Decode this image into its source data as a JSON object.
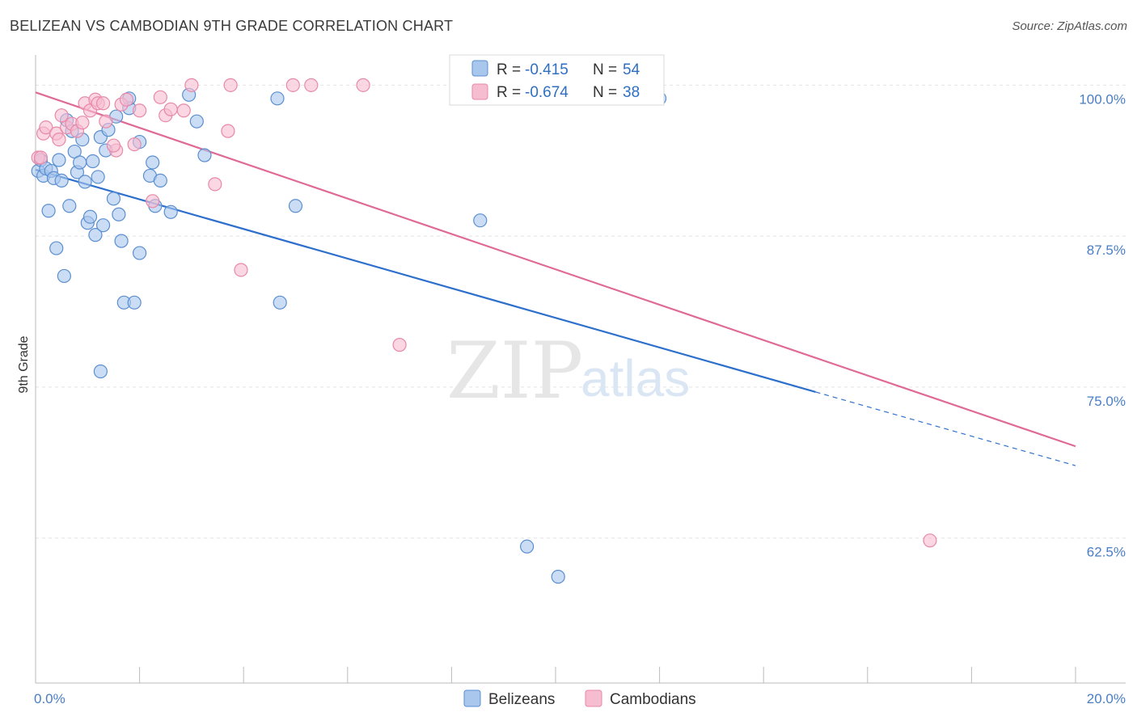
{
  "title": "BELIZEAN VS CAMBODIAN 9TH GRADE CORRELATION CHART",
  "source": "Source: ZipAtlas.com",
  "watermark": {
    "zip": "ZIP",
    "atlas": "atlas"
  },
  "colors": {
    "blue_fill": "#a9c6ec",
    "blue_stroke": "#5b8fd0",
    "blue_line": "#2d6fcc",
    "pink_fill": "#f6bcd0",
    "pink_stroke": "#e889a9",
    "pink_line": "#e06a96",
    "axis_text": "#4a7ec4"
  },
  "legend": {
    "r_label": "R =",
    "n_label": "N =",
    "rows": [
      {
        "r": "-0.415",
        "n": "54"
      },
      {
        "r": "-0.674",
        "n": "38"
      }
    ]
  },
  "bottom_legend": [
    "Belizeans",
    "Cambodians"
  ],
  "chart_data": {
    "type": "scatter",
    "title": "BELIZEAN VS CAMBODIAN 9TH GRADE CORRELATION CHART",
    "xlabel": "",
    "ylabel": "9th Grade",
    "xlim": [
      0,
      20
    ],
    "ylim": [
      50.5,
      102.5
    ],
    "x_tick_labels": [
      "0.0%",
      "20.0%"
    ],
    "y_ticks": [
      100,
      87.5,
      75,
      62.5
    ],
    "y_tick_labels": [
      "100.0%",
      "87.5%",
      "75.0%",
      "62.5%"
    ],
    "grid": true,
    "series": [
      {
        "name": "Belizeans",
        "points": [
          [
            0.05,
            92.9
          ],
          [
            0.1,
            93.8
          ],
          [
            0.15,
            92.5
          ],
          [
            0.2,
            93.1
          ],
          [
            0.3,
            92.9
          ],
          [
            0.25,
            89.6
          ],
          [
            0.35,
            92.3
          ],
          [
            0.45,
            93.8
          ],
          [
            0.4,
            86.5
          ],
          [
            0.5,
            92.1
          ],
          [
            0.55,
            84.2
          ],
          [
            0.6,
            97.1
          ],
          [
            0.65,
            90.0
          ],
          [
            0.7,
            96.2
          ],
          [
            0.75,
            94.5
          ],
          [
            0.8,
            92.8
          ],
          [
            0.85,
            93.6
          ],
          [
            0.9,
            95.5
          ],
          [
            0.95,
            92.0
          ],
          [
            1.0,
            88.6
          ],
          [
            1.05,
            89.1
          ],
          [
            1.1,
            93.7
          ],
          [
            1.15,
            87.6
          ],
          [
            1.2,
            92.4
          ],
          [
            1.25,
            95.7
          ],
          [
            1.3,
            88.4
          ],
          [
            1.35,
            94.6
          ],
          [
            1.4,
            96.3
          ],
          [
            1.5,
            90.6
          ],
          [
            1.55,
            97.4
          ],
          [
            1.6,
            89.3
          ],
          [
            1.65,
            87.1
          ],
          [
            1.7,
            82.0
          ],
          [
            1.8,
            98.1
          ],
          [
            1.9,
            82.0
          ],
          [
            2.0,
            86.1
          ],
          [
            2.2,
            92.5
          ],
          [
            2.25,
            93.6
          ],
          [
            2.4,
            92.1
          ],
          [
            1.25,
            76.3
          ],
          [
            1.8,
            98.9
          ],
          [
            2.0,
            95.3
          ],
          [
            2.3,
            90.0
          ],
          [
            2.95,
            99.2
          ],
          [
            3.1,
            97.0
          ],
          [
            3.25,
            94.2
          ],
          [
            2.6,
            89.5
          ],
          [
            4.65,
            98.9
          ],
          [
            4.7,
            82.0
          ],
          [
            5.0,
            90.0
          ],
          [
            8.55,
            88.8
          ],
          [
            9.45,
            61.8
          ],
          [
            10.05,
            59.3
          ],
          [
            12.0,
            98.9
          ]
        ]
      },
      {
        "name": "Cambodians",
        "points": [
          [
            0.05,
            94.0
          ],
          [
            0.15,
            96.0
          ],
          [
            0.2,
            96.5
          ],
          [
            0.4,
            96.0
          ],
          [
            0.45,
            95.5
          ],
          [
            0.5,
            97.5
          ],
          [
            0.6,
            96.5
          ],
          [
            0.7,
            96.8
          ],
          [
            0.8,
            96.2
          ],
          [
            0.9,
            96.9
          ],
          [
            0.95,
            98.5
          ],
          [
            1.05,
            97.9
          ],
          [
            1.15,
            98.8
          ],
          [
            1.2,
            98.5
          ],
          [
            1.3,
            98.5
          ],
          [
            1.35,
            97.0
          ],
          [
            1.55,
            94.6
          ],
          [
            1.65,
            98.4
          ],
          [
            1.75,
            98.8
          ],
          [
            1.9,
            95.1
          ],
          [
            2.0,
            97.9
          ],
          [
            2.25,
            90.4
          ],
          [
            2.4,
            99.0
          ],
          [
            2.5,
            97.5
          ],
          [
            2.6,
            98.0
          ],
          [
            2.85,
            97.9
          ],
          [
            3.0,
            100.0
          ],
          [
            3.45,
            91.8
          ],
          [
            3.7,
            96.2
          ],
          [
            3.75,
            100.0
          ],
          [
            3.95,
            84.7
          ],
          [
            4.95,
            100.0
          ],
          [
            5.3,
            100.0
          ],
          [
            6.3,
            100.0
          ],
          [
            7.0,
            78.5
          ],
          [
            17.2,
            62.3
          ],
          [
            1.5,
            95.0
          ],
          [
            0.1,
            94.0
          ]
        ]
      }
    ],
    "trendlines": [
      {
        "series": "Belizeans",
        "x": [
          0,
          15.0
        ],
        "y": [
          93.0,
          74.6
        ],
        "dashed_to": [
          20,
          68.5
        ]
      },
      {
        "series": "Cambodians",
        "x": [
          0,
          20
        ],
        "y": [
          99.4,
          70.1
        ]
      }
    ]
  }
}
